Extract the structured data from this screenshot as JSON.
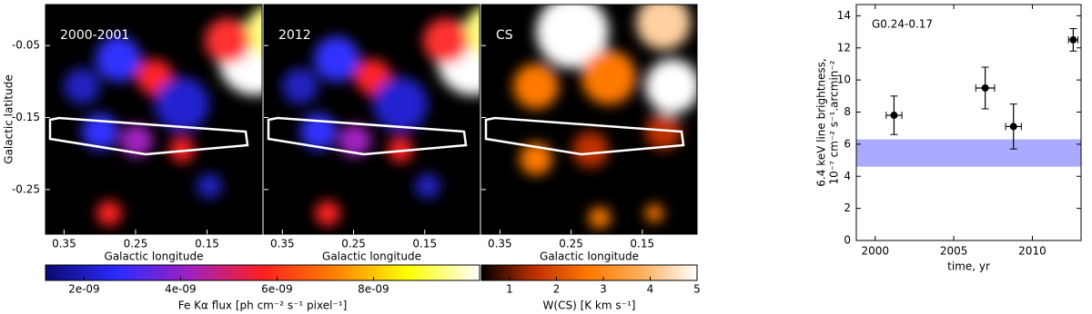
{
  "chart_data": [
    {
      "type": "map",
      "ylabel": "Galactic latitude",
      "xlabel": "Galactic longitude",
      "panels": [
        "2000-2001",
        "2012",
        "CS"
      ],
      "xlim": [
        0.376,
        0.073
      ],
      "xticks": [
        0.35,
        0.25,
        0.15
      ],
      "ylim": [
        -0.312,
        0.007
      ],
      "yticks": [
        -0.05,
        -0.15,
        -0.25
      ],
      "colorbars": [
        {
          "label": "Fe Kα flux [ph cm⁻² s⁻¹ pixel⁻¹]",
          "lim": [
            1.2e-09,
            1.02e-08
          ],
          "ticks": [
            {
              "value": 2e-09,
              "label": "2e-09"
            },
            {
              "value": 4e-09,
              "label": "4e-09"
            },
            {
              "value": 6e-09,
              "label": "6e-09"
            },
            {
              "value": 8e-09,
              "label": "8e-09"
            }
          ],
          "colors": [
            "#0a0a6e",
            "#2b2bff",
            "#a020c0",
            "#ff2020",
            "#ff8000",
            "#ffff00",
            "#ffffff"
          ]
        },
        {
          "label": "W(CS) [K km s⁻¹]",
          "lim": [
            0.4,
            5
          ],
          "ticks": [
            1,
            2,
            3,
            4,
            5
          ],
          "colors": [
            "#000000",
            "#c03000",
            "#ff7a00",
            "#ffb060",
            "#ffffff"
          ]
        }
      ]
    },
    {
      "type": "scatter",
      "annotation": "G0.24-0.17",
      "ylabel": [
        "6.4 keV line brightness,",
        "10⁻⁷ cm⁻² s⁻¹.arcmin⁻²"
      ],
      "xlabel": "time, yr",
      "xlim": [
        1998.8,
        2013.1
      ],
      "xticks": [
        2000,
        2005,
        2010
      ],
      "ylim": [
        0,
        14.7
      ],
      "yticks": [
        0,
        2,
        4,
        6,
        8,
        10,
        12,
        14
      ],
      "x": [
        2001.2,
        2007.0,
        2008.8,
        2012.6
      ],
      "values": [
        7.8,
        9.5,
        7.1,
        12.5
      ],
      "xerr": [
        0.5,
        0.6,
        0.5,
        0.3
      ],
      "yerr": [
        1.2,
        1.3,
        1.4,
        0.7
      ],
      "color": "#000000",
      "band": [
        4.6,
        6.3
      ],
      "band_color": "#aaaaff"
    }
  ]
}
